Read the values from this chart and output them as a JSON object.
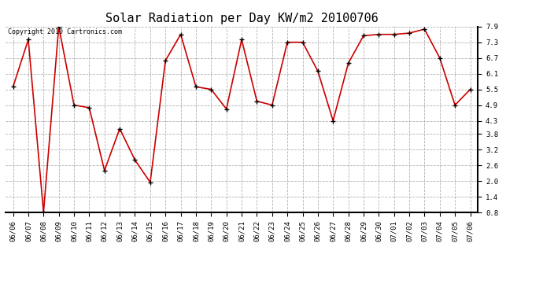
{
  "title": "Solar Radiation per Day KW/m2 20100706",
  "copyright": "Copyright 2010 Cartronics.com",
  "dates": [
    "06/06",
    "06/07",
    "06/08",
    "06/09",
    "06/10",
    "06/11",
    "06/12",
    "06/13",
    "06/14",
    "06/15",
    "06/16",
    "06/17",
    "06/18",
    "06/19",
    "06/20",
    "06/21",
    "06/22",
    "06/23",
    "06/24",
    "06/25",
    "06/26",
    "06/27",
    "06/28",
    "06/29",
    "06/30",
    "07/01",
    "07/02",
    "07/03",
    "07/04",
    "07/05",
    "07/06"
  ],
  "values": [
    5.6,
    7.4,
    0.8,
    7.9,
    4.9,
    4.8,
    2.4,
    4.0,
    2.8,
    1.95,
    6.6,
    7.6,
    5.6,
    5.5,
    4.75,
    7.4,
    5.05,
    4.9,
    7.3,
    7.3,
    6.2,
    4.3,
    6.5,
    7.55,
    7.6,
    7.6,
    7.65,
    7.8,
    6.7,
    4.9,
    5.5
  ],
  "line_color": "#cc0000",
  "marker_color": "#000000",
  "bg_color": "#ffffff",
  "grid_color": "#aaaaaa",
  "ylim": [
    0.8,
    7.9
  ],
  "yticks": [
    0.8,
    1.4,
    2.0,
    2.6,
    3.2,
    3.8,
    4.3,
    4.9,
    5.5,
    6.1,
    6.7,
    7.3,
    7.9
  ],
  "title_fontsize": 11,
  "tick_fontsize": 6.5,
  "copyright_fontsize": 6
}
